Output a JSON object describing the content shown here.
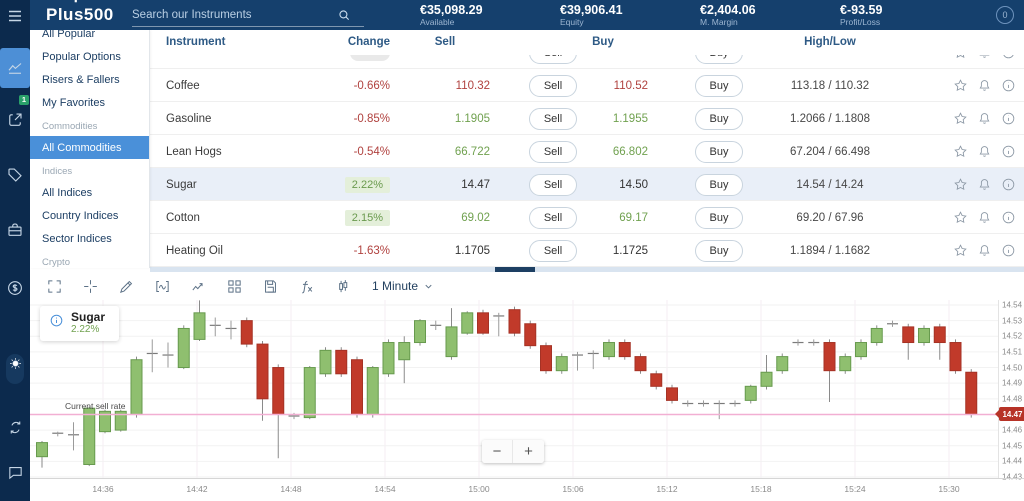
{
  "topbar": {
    "logo": "Plus500",
    "search_placeholder": "Search our Instruments",
    "stats": [
      {
        "value": "€35,098.29",
        "label": "Available"
      },
      {
        "value": "€39,906.41",
        "label": "Equity"
      },
      {
        "value": "€2,404.06",
        "label": "M. Margin"
      },
      {
        "value": "€-93.59",
        "label": "Profit/Loss"
      }
    ],
    "notification_count": "0"
  },
  "rail": {
    "items": [
      {
        "name": "markets-icon",
        "active": true
      },
      {
        "name": "positions-icon",
        "badge": "1"
      },
      {
        "name": "tag-icon"
      },
      {
        "name": "portfolio-icon"
      },
      {
        "name": "funds-icon"
      }
    ],
    "bottom_items": [
      {
        "name": "theme-toggle"
      },
      {
        "name": "refresh-icon"
      },
      {
        "name": "chat-icon"
      }
    ]
  },
  "sidebar": {
    "items": [
      {
        "type": "item",
        "label": "All Popular",
        "clipped": true
      },
      {
        "type": "item",
        "label": "Popular Options"
      },
      {
        "type": "item",
        "label": "Risers & Fallers"
      },
      {
        "type": "item",
        "label": "My Favorites"
      },
      {
        "type": "section",
        "label": "Commodities"
      },
      {
        "type": "item",
        "label": "All Commodities",
        "selected": true
      },
      {
        "type": "section",
        "label": "Indices"
      },
      {
        "type": "item",
        "label": "All Indices"
      },
      {
        "type": "item",
        "label": "Country Indices"
      },
      {
        "type": "item",
        "label": "Sector Indices"
      },
      {
        "type": "section",
        "label": "Crypto"
      }
    ]
  },
  "table": {
    "headers": [
      "Instrument",
      "Change",
      "Sell",
      "Buy",
      "High/Low"
    ],
    "sell_label": "Sell",
    "buy_label": "Buy",
    "rows": [
      {
        "partial": true,
        "instrument": "",
        "change": "",
        "change_tone": "neutral",
        "sell": "",
        "sell_tone": "dark",
        "buy": "",
        "buy_tone": "dark",
        "highlow": ""
      },
      {
        "instrument": "Coffee",
        "change": "-0.66%",
        "change_tone": "down",
        "sell": "110.32",
        "sell_tone": "red",
        "buy": "110.52",
        "buy_tone": "red",
        "highlow": "113.18 / 110.32"
      },
      {
        "instrument": "Gasoline",
        "change": "-0.85%",
        "change_tone": "down",
        "sell": "1.1905",
        "sell_tone": "green",
        "buy": "1.1955",
        "buy_tone": "green",
        "highlow": "1.2066 / 1.1808"
      },
      {
        "instrument": "Lean Hogs",
        "change": "-0.54%",
        "change_tone": "down",
        "sell": "66.722",
        "sell_tone": "green",
        "buy": "66.802",
        "buy_tone": "green",
        "highlow": "67.204 / 66.498"
      },
      {
        "instrument": "Sugar",
        "change": "2.22%",
        "change_tone": "up-badge",
        "sell": "14.47",
        "sell_tone": "dark",
        "buy": "14.50",
        "buy_tone": "dark",
        "highlow": "14.54 / 14.24",
        "selected": true
      },
      {
        "instrument": "Cotton",
        "change": "2.15%",
        "change_tone": "up-badge",
        "sell": "69.02",
        "sell_tone": "green",
        "buy": "69.17",
        "buy_tone": "green",
        "highlow": "69.20 / 67.96"
      },
      {
        "instrument": "Heating Oil",
        "change": "-1.63%",
        "change_tone": "down",
        "sell": "1.1705",
        "sell_tone": "dark",
        "buy": "1.1725",
        "buy_tone": "dark",
        "highlow": "1.1894 / 1.1682"
      }
    ]
  },
  "chart": {
    "toolbar_icons": [
      "expand",
      "crosshair",
      "draw",
      "indicators",
      "line-type",
      "layout",
      "save",
      "functions",
      "candlestick"
    ],
    "timeframe": "1 Minute",
    "legend": {
      "name": "Sugar",
      "change": "2.22%"
    },
    "current_rate_label": "Current sell rate",
    "price_tag": "14.47",
    "zoom_out": "−",
    "zoom_in": "+"
  },
  "chart_data": {
    "type": "candlestick",
    "instrument": "Sugar",
    "timeframe": "1 Minute",
    "title": "Sugar 2.22%",
    "x_ticks": [
      "14:36",
      "14:42",
      "14:48",
      "14:54",
      "15:00",
      "15:06",
      "15:12",
      "15:18",
      "15:24",
      "15:30"
    ],
    "y_ticks": [
      "14.54",
      "14.53",
      "14.52",
      "14.51",
      "14.50",
      "14.49",
      "14.48",
      "14.47",
      "14.46",
      "14.45",
      "14.44",
      "14.43"
    ],
    "y_range": [
      14.428,
      14.545
    ],
    "current_sell_rate": 14.47,
    "grid": true,
    "candles_ohlc": [
      [
        14.443,
        14.453,
        14.436,
        14.452
      ],
      [
        14.458,
        14.459,
        14.456,
        14.458
      ],
      [
        14.456,
        14.465,
        14.447,
        14.457
      ],
      [
        14.438,
        14.475,
        14.437,
        14.474
      ],
      [
        14.459,
        14.473,
        14.458,
        14.472
      ],
      [
        14.46,
        14.473,
        14.459,
        14.472
      ],
      [
        14.47,
        14.507,
        14.468,
        14.505
      ],
      [
        14.508,
        14.518,
        14.497,
        14.509
      ],
      [
        14.507,
        14.516,
        14.5,
        14.508
      ],
      [
        14.5,
        14.527,
        14.499,
        14.525
      ],
      [
        14.518,
        14.543,
        14.517,
        14.535
      ],
      [
        14.527,
        14.532,
        14.52,
        14.527
      ],
      [
        14.524,
        14.53,
        14.518,
        14.525
      ],
      [
        14.53,
        14.532,
        14.513,
        14.515
      ],
      [
        14.515,
        14.517,
        14.466,
        14.48
      ],
      [
        14.5,
        14.502,
        14.442,
        14.47
      ],
      [
        14.469,
        14.471,
        14.467,
        14.469
      ],
      [
        14.468,
        14.501,
        14.467,
        14.5
      ],
      [
        14.496,
        14.513,
        14.494,
        14.511
      ],
      [
        14.511,
        14.513,
        14.494,
        14.496
      ],
      [
        14.505,
        14.507,
        14.468,
        14.47
      ],
      [
        14.47,
        14.501,
        14.468,
        14.5
      ],
      [
        14.496,
        14.518,
        14.494,
        14.516
      ],
      [
        14.505,
        14.52,
        14.49,
        14.516
      ],
      [
        14.516,
        14.531,
        14.514,
        14.53
      ],
      [
        14.527,
        14.53,
        14.524,
        14.527
      ],
      [
        14.507,
        14.538,
        14.505,
        14.526
      ],
      [
        14.522,
        14.536,
        14.521,
        14.535
      ],
      [
        14.535,
        14.537,
        14.521,
        14.522
      ],
      [
        14.533,
        14.535,
        14.52,
        14.533
      ],
      [
        14.537,
        14.539,
        14.52,
        14.522
      ],
      [
        14.528,
        14.53,
        14.512,
        14.514
      ],
      [
        14.514,
        14.516,
        14.496,
        14.498
      ],
      [
        14.498,
        14.509,
        14.496,
        14.507
      ],
      [
        14.508,
        14.51,
        14.498,
        14.508
      ],
      [
        14.509,
        14.511,
        14.499,
        14.509
      ],
      [
        14.507,
        14.518,
        14.505,
        14.516
      ],
      [
        14.516,
        14.518,
        14.505,
        14.507
      ],
      [
        14.507,
        14.509,
        14.496,
        14.498
      ],
      [
        14.496,
        14.498,
        14.486,
        14.488
      ],
      [
        14.487,
        14.489,
        14.477,
        14.479
      ],
      [
        14.477,
        14.479,
        14.475,
        14.477
      ],
      [
        14.477,
        14.479,
        14.475,
        14.477
      ],
      [
        14.477,
        14.479,
        14.467,
        14.477
      ],
      [
        14.477,
        14.479,
        14.475,
        14.477
      ],
      [
        14.479,
        14.489,
        14.477,
        14.488
      ],
      [
        14.488,
        14.508,
        14.486,
        14.497
      ],
      [
        14.498,
        14.509,
        14.496,
        14.507
      ],
      [
        14.516,
        14.518,
        14.514,
        14.516
      ],
      [
        14.516,
        14.518,
        14.514,
        14.516
      ],
      [
        14.516,
        14.518,
        14.478,
        14.498
      ],
      [
        14.498,
        14.509,
        14.496,
        14.507
      ],
      [
        14.507,
        14.518,
        14.505,
        14.516
      ],
      [
        14.516,
        14.527,
        14.514,
        14.525
      ],
      [
        14.528,
        14.53,
        14.526,
        14.528
      ],
      [
        14.526,
        14.528,
        14.505,
        14.516
      ],
      [
        14.516,
        14.527,
        14.514,
        14.525
      ],
      [
        14.526,
        14.528,
        14.505,
        14.516
      ],
      [
        14.516,
        14.518,
        14.496,
        14.498
      ],
      [
        14.497,
        14.499,
        14.468,
        14.47
      ]
    ]
  },
  "colors": {
    "topbar": "#15406d",
    "rail": "#0c2a4d",
    "accent": "#4a90d9",
    "red": "#b0413e",
    "green": "#70a14f",
    "candle_up": "#8fbf6f",
    "candle_up_border": "#679a4e",
    "candle_down": "#c13a2a",
    "candle_down_border": "#a53225",
    "price_line": "#f2afd3",
    "price_tag_bg": "#b73327",
    "selected_row": "#e9eff8"
  }
}
